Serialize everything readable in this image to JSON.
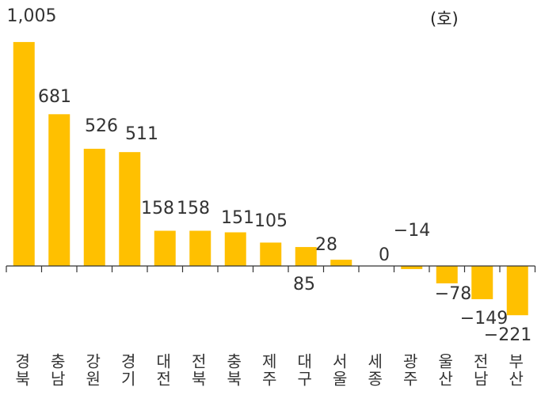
{
  "chart_data": {
    "type": "bar",
    "unit_label": "(호)",
    "categories": [
      "경북",
      "충남",
      "강원",
      "경기",
      "대전",
      "전북",
      "충북",
      "제주",
      "대구",
      "서울",
      "세종",
      "광주",
      "울산",
      "전남",
      "부산"
    ],
    "values": [
      1005,
      681,
      526,
      511,
      158,
      158,
      151,
      105,
      85,
      28,
      0,
      -14,
      -78,
      -149,
      -221
    ],
    "value_labels": [
      "1,005",
      "681",
      "526",
      "511",
      "158",
      "158",
      "151",
      "105",
      "85",
      "28",
      "0",
      "−14",
      "−78",
      "−149",
      "−221"
    ],
    "bar_color": "#FFC000",
    "axis_color": "#333333",
    "ylim": [
      -250,
      1010
    ],
    "grid": false,
    "legend": "none"
  }
}
